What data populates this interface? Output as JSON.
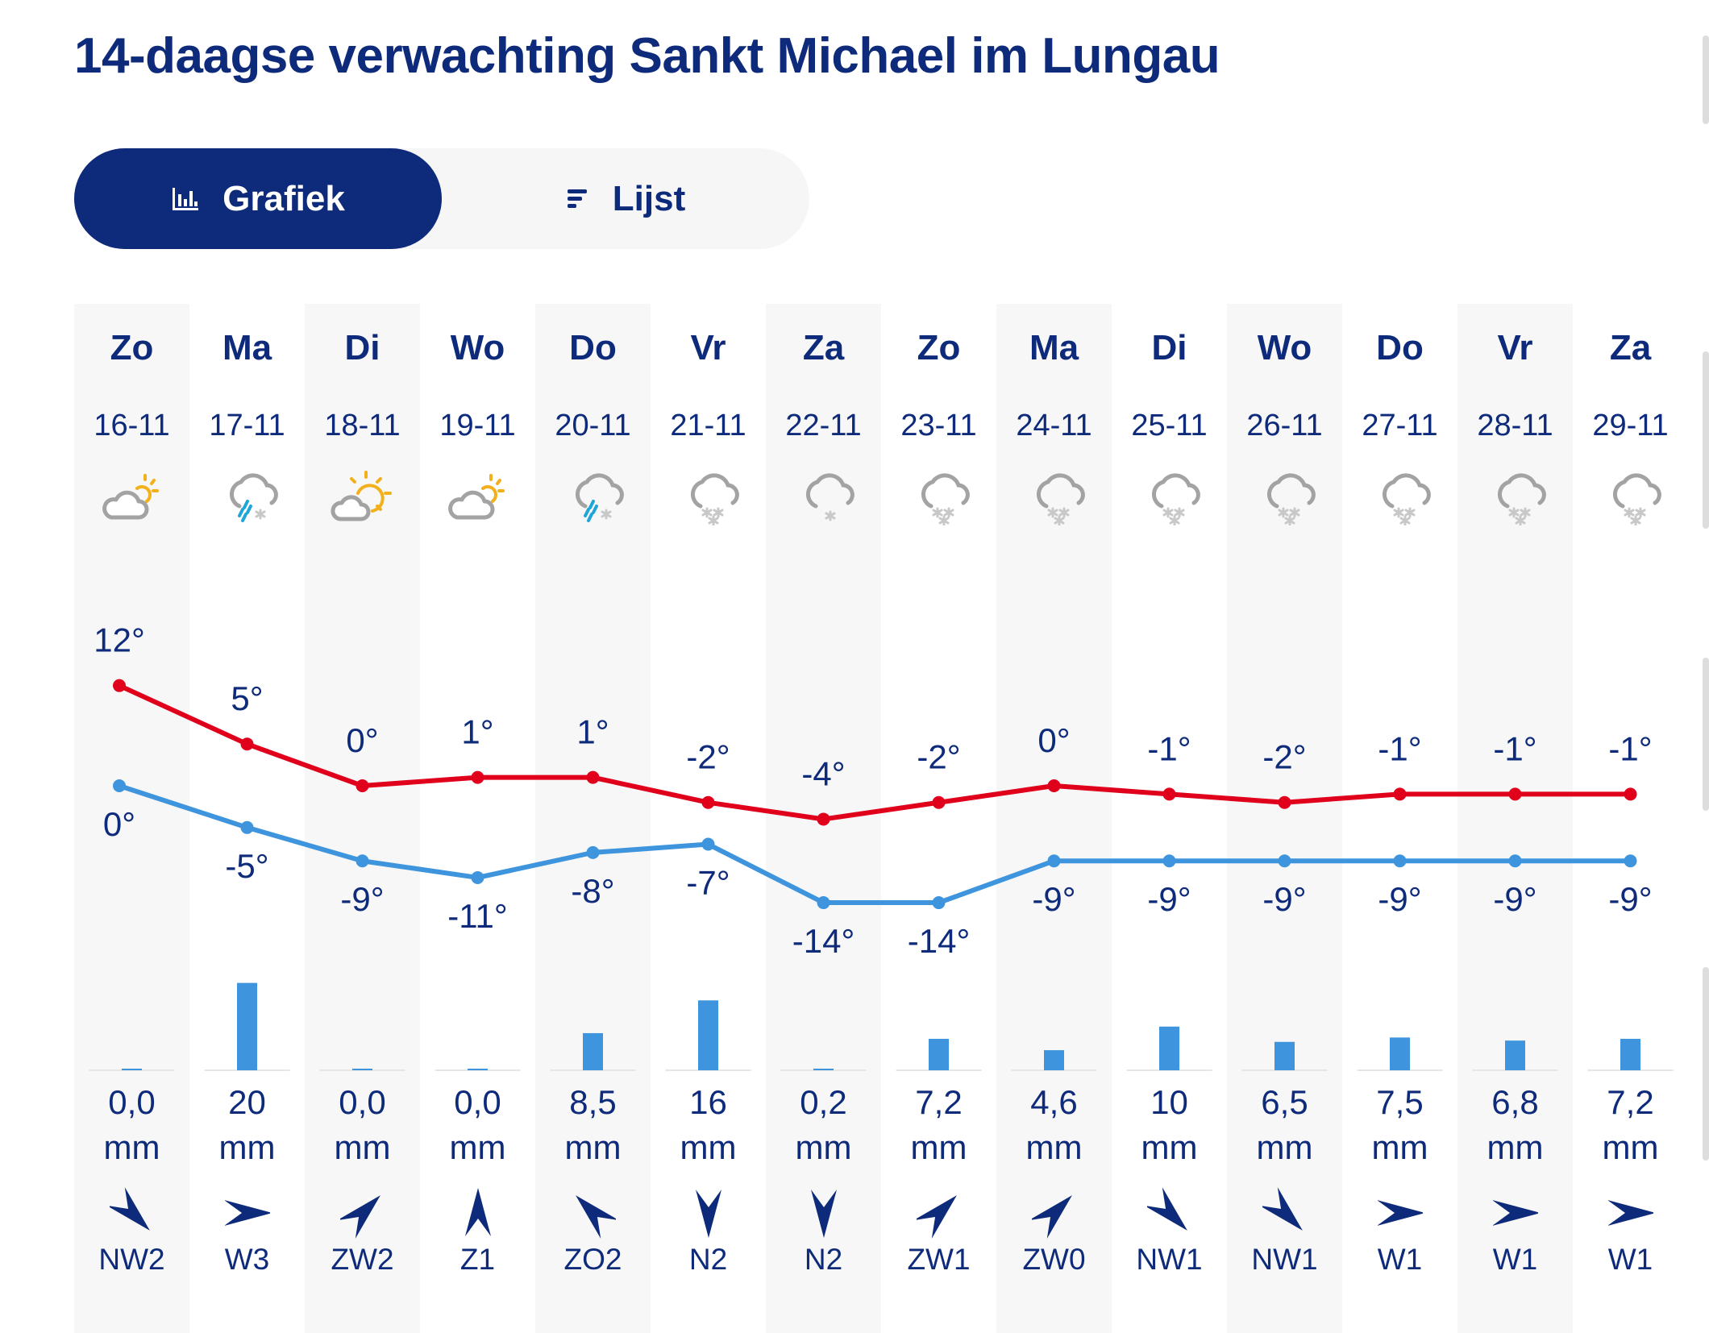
{
  "title": "14-daagse verwachting Sankt Michael im Lungau",
  "toggle": {
    "graph_label": "Grafiek",
    "list_label": "Lijst",
    "active": "graph"
  },
  "colors": {
    "accent": "#0e2a7a",
    "max_temp": "#e0001b",
    "min_temp": "#3e95dd",
    "precip": "#3e95dd"
  },
  "units": {
    "temp": "°",
    "precip": "mm"
  },
  "days": [
    {
      "name": "Zo",
      "date": "16-11",
      "icon": "partly-cloudy",
      "max": 12,
      "min": 0,
      "precip": "0,0",
      "precip_val": 0.0,
      "wind_dir": "NW",
      "wind": "NW2"
    },
    {
      "name": "Ma",
      "date": "17-11",
      "icon": "rain-snow",
      "max": 5,
      "min": -5,
      "precip": "20",
      "precip_val": 20,
      "wind_dir": "W",
      "wind": "W3"
    },
    {
      "name": "Di",
      "date": "18-11",
      "icon": "sun-cloud",
      "max": 0,
      "min": -9,
      "precip": "0,0",
      "precip_val": 0.0,
      "wind_dir": "ZW",
      "wind": "ZW2"
    },
    {
      "name": "Wo",
      "date": "19-11",
      "icon": "partly-cloudy",
      "max": 1,
      "min": -11,
      "precip": "0,0",
      "precip_val": 0.0,
      "wind_dir": "Z",
      "wind": "Z1"
    },
    {
      "name": "Do",
      "date": "20-11",
      "icon": "rain-snow",
      "max": 1,
      "min": -8,
      "precip": "8,5",
      "precip_val": 8.5,
      "wind_dir": "ZO",
      "wind": "ZO2"
    },
    {
      "name": "Vr",
      "date": "21-11",
      "icon": "snow",
      "max": -2,
      "min": -7,
      "precip": "16",
      "precip_val": 16,
      "wind_dir": "N",
      "wind": "N2"
    },
    {
      "name": "Za",
      "date": "22-11",
      "icon": "light-snow",
      "max": -4,
      "min": -14,
      "precip": "0,2",
      "precip_val": 0.2,
      "wind_dir": "N",
      "wind": "N2"
    },
    {
      "name": "Zo",
      "date": "23-11",
      "icon": "snow",
      "max": -2,
      "min": -14,
      "precip": "7,2",
      "precip_val": 7.2,
      "wind_dir": "ZW",
      "wind": "ZW1"
    },
    {
      "name": "Ma",
      "date": "24-11",
      "icon": "snow",
      "max": 0,
      "min": -9,
      "precip": "4,6",
      "precip_val": 4.6,
      "wind_dir": "ZW",
      "wind": "ZW0"
    },
    {
      "name": "Di",
      "date": "25-11",
      "icon": "snow",
      "max": -1,
      "min": -9,
      "precip": "10",
      "precip_val": 10,
      "wind_dir": "NW",
      "wind": "NW1"
    },
    {
      "name": "Wo",
      "date": "26-11",
      "icon": "snow",
      "max": -2,
      "min": -9,
      "precip": "6,5",
      "precip_val": 6.5,
      "wind_dir": "NW",
      "wind": "NW1"
    },
    {
      "name": "Do",
      "date": "27-11",
      "icon": "snow",
      "max": -1,
      "min": -9,
      "precip": "7,5",
      "precip_val": 7.5,
      "wind_dir": "W",
      "wind": "W1"
    },
    {
      "name": "Vr",
      "date": "28-11",
      "icon": "snow",
      "max": -1,
      "min": -9,
      "precip": "6,8",
      "precip_val": 6.8,
      "wind_dir": "W",
      "wind": "W1"
    },
    {
      "name": "Za",
      "date": "29-11",
      "icon": "snow",
      "max": -1,
      "min": -9,
      "precip": "7,2",
      "precip_val": 7.2,
      "wind_dir": "W",
      "wind": "W1"
    }
  ]
}
